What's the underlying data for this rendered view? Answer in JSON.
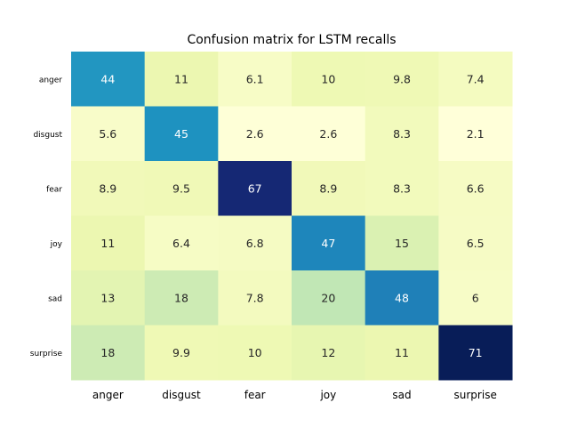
{
  "chart_data": {
    "type": "heatmap",
    "title": "Confusion matrix for LSTM recalls",
    "x_categories": [
      "anger",
      "disgust",
      "fear",
      "joy",
      "sad",
      "surprise"
    ],
    "y_categories": [
      "anger",
      "disgust",
      "fear",
      "joy",
      "sad",
      "surprise"
    ],
    "values": [
      [
        44,
        11,
        6.1,
        10,
        9.8,
        7.4
      ],
      [
        5.6,
        45,
        2.6,
        2.6,
        8.3,
        2.1
      ],
      [
        8.9,
        9.5,
        67,
        8.9,
        8.3,
        6.6
      ],
      [
        11,
        6.4,
        6.8,
        47,
        15,
        6.5
      ],
      [
        13,
        18,
        7.8,
        20,
        48,
        6
      ],
      [
        18,
        9.9,
        10,
        12,
        11,
        71
      ]
    ],
    "value_range": [
      2.1,
      71
    ],
    "colormap": "YlGnBu",
    "colorbar": false
  }
}
